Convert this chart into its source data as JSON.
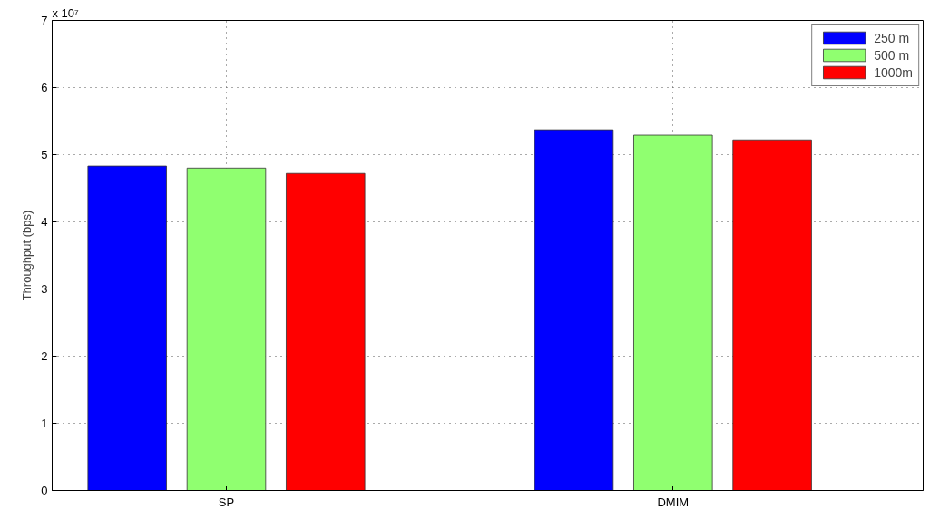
{
  "chart_data": {
    "type": "bar",
    "ylabel": "Throughput (bps)",
    "categories": [
      "SP",
      "DMIM"
    ],
    "series": [
      {
        "name": "250 m",
        "color": "#0000ff",
        "values": [
          4.83,
          5.37
        ]
      },
      {
        "name": "500 m",
        "color": "#90ff70",
        "values": [
          4.8,
          5.29
        ]
      },
      {
        "name": "1000m",
        "color": "#ff0000",
        "values": [
          4.72,
          5.22
        ]
      }
    ],
    "ylim": [
      0,
      7
    ],
    "yticks": [
      0,
      1,
      2,
      3,
      4,
      5,
      6,
      7
    ],
    "annotations": [
      "x 10⁷"
    ],
    "grid": true,
    "legend": "top right"
  }
}
